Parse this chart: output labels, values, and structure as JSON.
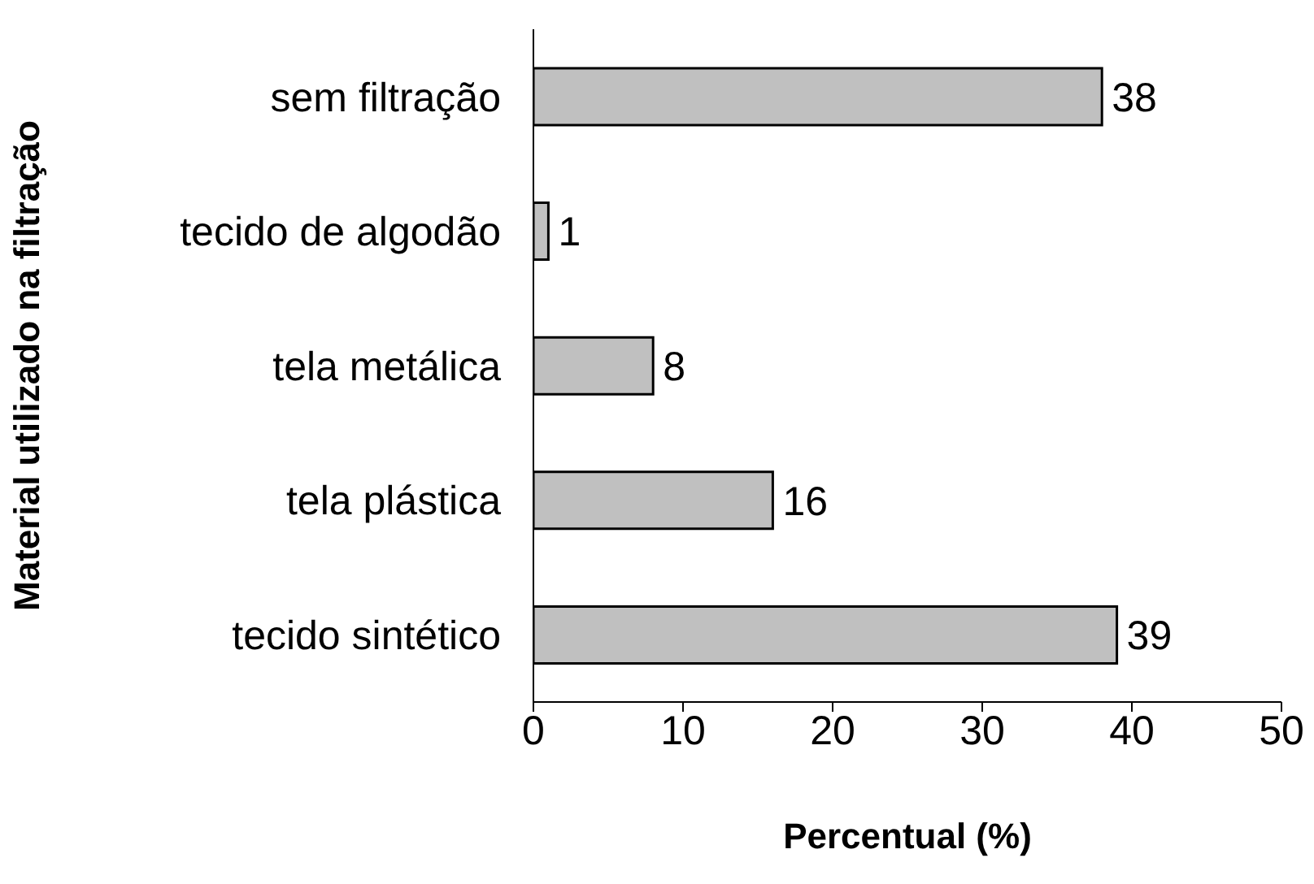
{
  "chart_data": {
    "type": "bar",
    "orientation": "horizontal",
    "xlabel": "Percentual (%)",
    "ylabel": "Material utilizado na filtração",
    "categories": [
      "sem filtração",
      "tecido de algodão",
      "tela metálica",
      "tela plástica",
      "tecido sintético"
    ],
    "values": [
      38,
      1,
      8,
      16,
      39
    ],
    "color": "#c0c0c0",
    "xlim": [
      0,
      50
    ],
    "xticks": [
      0,
      10,
      20,
      30,
      40,
      50
    ],
    "data_labels": true
  }
}
